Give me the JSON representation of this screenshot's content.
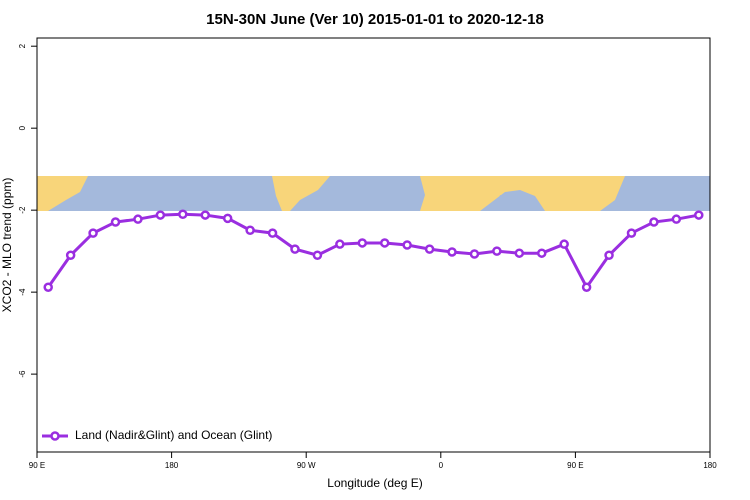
{
  "chart_data": {
    "type": "line",
    "title": "15N-30N June (Ver 10)   2015-01-01 to 2020-12-18",
    "x_label": "Longitude (deg E)",
    "y_label": "XCO2 - MLO trend (ppm)",
    "xlim": [
      90,
      540
    ],
    "ylim": [
      -7.9,
      2.2
    ],
    "xticks": [
      {
        "value": 90,
        "label": "90 E"
      },
      {
        "value": 180,
        "label": "180"
      },
      {
        "value": 270,
        "label": "90 W"
      },
      {
        "value": 360,
        "label": "0"
      },
      {
        "value": 450,
        "label": "90 E"
      },
      {
        "value": 540,
        "label": "180"
      }
    ],
    "yticks": [
      -6,
      -4,
      -2,
      0,
      2
    ],
    "legend": "bottom-left",
    "x": [
      97.5,
      112.5,
      127.5,
      142.5,
      157.5,
      172.5,
      187.5,
      202.5,
      217.5,
      232.5,
      247.5,
      262.5,
      277.5,
      292.5,
      307.5,
      322.5,
      337.5,
      352.5,
      367.5,
      382.5,
      397.5,
      412.5,
      427.5,
      442.5,
      457.5,
      472.5,
      487.5,
      502.5,
      517.5,
      532.5
    ],
    "series": [
      {
        "name": "Land (Nadir&Glint) and Ocean (Glint)",
        "color": "#9a2ee0",
        "values": [
          -3.88,
          -3.1,
          -2.56,
          -2.29,
          -2.22,
          -2.12,
          -2.1,
          -2.12,
          -2.2,
          -2.49,
          -2.56,
          -2.95,
          -3.1,
          -2.83,
          -2.8,
          -2.8,
          -2.85,
          -2.95,
          -3.02,
          -3.07,
          -3.0,
          -3.05,
          -3.05,
          -2.83,
          -3.88,
          -3.1,
          -2.56,
          -2.29,
          -2.22,
          -2.12
        ]
      }
    ]
  }
}
